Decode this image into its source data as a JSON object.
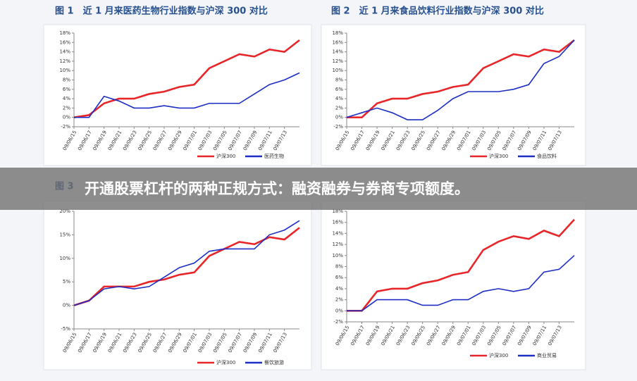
{
  "banner": "开通股票杠杆的两种正规方式：融资融券与券商专项额度。",
  "chart_data": [
    {
      "type": "line",
      "title": "图 1　近 1 月来医药生物行业指数与沪深 300 对比",
      "categories": [
        "09/06/15",
        "09/06/17",
        "09/06/19",
        "09/06/21",
        "09/06/23",
        "09/06/25",
        "09/06/27",
        "09/06/29",
        "09/07/01",
        "09/07/03",
        "09/07/05",
        "09/07/07",
        "09/07/09",
        "09/07/11",
        "09/07/13",
        null
      ],
      "series": [
        {
          "name": "沪深300",
          "color": "#e8262a",
          "values": [
            0,
            0.5,
            3,
            4,
            4,
            5,
            5.5,
            6.5,
            7,
            10.5,
            12,
            13.5,
            13,
            14.5,
            14,
            16.5
          ]
        },
        {
          "name": "医药生物",
          "color": "#1c2ec4",
          "values": [
            0,
            0,
            4.5,
            3.5,
            2,
            2,
            2.5,
            2,
            2,
            3,
            3,
            3,
            5,
            7,
            8,
            9.5
          ]
        }
      ],
      "ylim": [
        -2,
        18
      ],
      "yticks": [
        {
          "value": -2,
          "label": "-2%"
        },
        {
          "value": 0,
          "label": "0%"
        },
        {
          "value": 2,
          "label": "2%"
        },
        {
          "value": 4,
          "label": "4%"
        },
        {
          "value": 6,
          "label": "6%"
        },
        {
          "value": 8,
          "label": "8%"
        },
        {
          "value": 10,
          "label": "10%"
        },
        {
          "value": 12,
          "label": "12%"
        },
        {
          "value": 14,
          "label": "14%"
        },
        {
          "value": 16,
          "label": "16%"
        },
        {
          "value": 18,
          "label": "18%"
        }
      ]
    },
    {
      "type": "line",
      "title": "图 2　近 1 月来食品饮料行业指数与沪深 300 对比",
      "categories": [
        "09/06/15",
        "09/06/17",
        "09/06/19",
        "09/06/21",
        "09/06/23",
        "09/06/25",
        "09/06/27",
        "09/06/29",
        "09/07/01",
        "09/07/03",
        "09/07/05",
        "09/07/07",
        "09/07/09",
        "09/07/11",
        "09/07/13",
        null
      ],
      "series": [
        {
          "name": "沪深300",
          "color": "#e8262a",
          "values": [
            0,
            0,
            3,
            4,
            4,
            5,
            5.5,
            6.5,
            7,
            10.5,
            12,
            13.5,
            13,
            14.5,
            14,
            16.5
          ]
        },
        {
          "name": "食品饮料",
          "color": "#1c2ec4",
          "values": [
            0,
            1,
            2,
            1,
            -0.5,
            -0.5,
            1.5,
            4,
            5.5,
            5.5,
            5.5,
            6,
            7,
            11.5,
            13,
            16.5
          ]
        }
      ],
      "ylim": [
        -2,
        18
      ],
      "yticks": [
        {
          "value": -2,
          "label": "-2%"
        },
        {
          "value": 0,
          "label": "0%"
        },
        {
          "value": 2,
          "label": "2%"
        },
        {
          "value": 4,
          "label": "4%"
        },
        {
          "value": 6,
          "label": "6%"
        },
        {
          "value": 8,
          "label": "8%"
        },
        {
          "value": 10,
          "label": "10%"
        },
        {
          "value": 12,
          "label": "12%"
        },
        {
          "value": 14,
          "label": "14%"
        },
        {
          "value": 16,
          "label": "16%"
        },
        {
          "value": 18,
          "label": "18%"
        }
      ]
    },
    {
      "type": "line",
      "title": "图 3",
      "categories": [
        "09/06/15",
        "09/06/17",
        "09/06/19",
        "09/06/21",
        "09/06/23",
        "09/06/25",
        "09/06/27",
        "09/06/29",
        "09/07/01",
        "09/07/03",
        "09/07/05",
        "09/07/07",
        "09/07/09",
        "09/07/11",
        "09/07/13",
        null
      ],
      "series": [
        {
          "name": "沪深300",
          "color": "#e8262a",
          "values": [
            0,
            1,
            4,
            4,
            4,
            5,
            5.5,
            6.5,
            7,
            10.5,
            12,
            13.5,
            13,
            14.5,
            14,
            16.5
          ]
        },
        {
          "name": "餐饮旅游",
          "color": "#1c2ec4",
          "values": [
            0,
            1,
            3.5,
            4,
            3.5,
            4,
            6,
            8,
            9,
            11.5,
            12,
            12,
            12,
            15,
            16,
            18
          ]
        }
      ],
      "ylim": [
        -5,
        20
      ],
      "yticks": [
        {
          "value": -5,
          "label": "-5%"
        },
        {
          "value": 0,
          "label": "0%"
        },
        {
          "value": 5,
          "label": "5%"
        },
        {
          "value": 10,
          "label": "10%"
        },
        {
          "value": 15,
          "label": "15%"
        },
        {
          "value": 20,
          "label": "20%"
        }
      ]
    },
    {
      "type": "line",
      "categories": [
        "09/06/15",
        "09/06/17",
        "09/06/19",
        "09/06/21",
        "09/06/23",
        "09/06/25",
        "09/06/27",
        "09/06/29",
        "09/07/01",
        "09/07/03",
        "09/07/05",
        "09/07/07",
        "09/07/09",
        "09/07/11",
        "09/07/13",
        null
      ],
      "series": [
        {
          "name": "沪深300",
          "color": "#e8262a",
          "values": [
            0,
            0,
            3.5,
            4,
            4,
            5,
            5.5,
            6.5,
            7,
            11,
            12.5,
            13.5,
            13,
            14.5,
            13.5,
            16.5
          ]
        },
        {
          "name": "商业贸易",
          "color": "#1c2ec4",
          "values": [
            0,
            0,
            2,
            2,
            2,
            1,
            1,
            2,
            2,
            3.5,
            4,
            3.5,
            4,
            7,
            7.5,
            10
          ]
        }
      ],
      "ylim": [
        -2,
        18
      ],
      "yticks": [
        {
          "value": -2,
          "label": "-2%"
        },
        {
          "value": 0,
          "label": "0%"
        },
        {
          "value": 2,
          "label": "2%"
        },
        {
          "value": 4,
          "label": "4%"
        },
        {
          "value": 6,
          "label": "6%"
        },
        {
          "value": 8,
          "label": "8%"
        },
        {
          "value": 10,
          "label": "10%"
        },
        {
          "value": 12,
          "label": "12%"
        },
        {
          "value": 14,
          "label": "14%"
        },
        {
          "value": 16,
          "label": "16%"
        },
        {
          "value": 18,
          "label": "18%"
        }
      ]
    }
  ]
}
